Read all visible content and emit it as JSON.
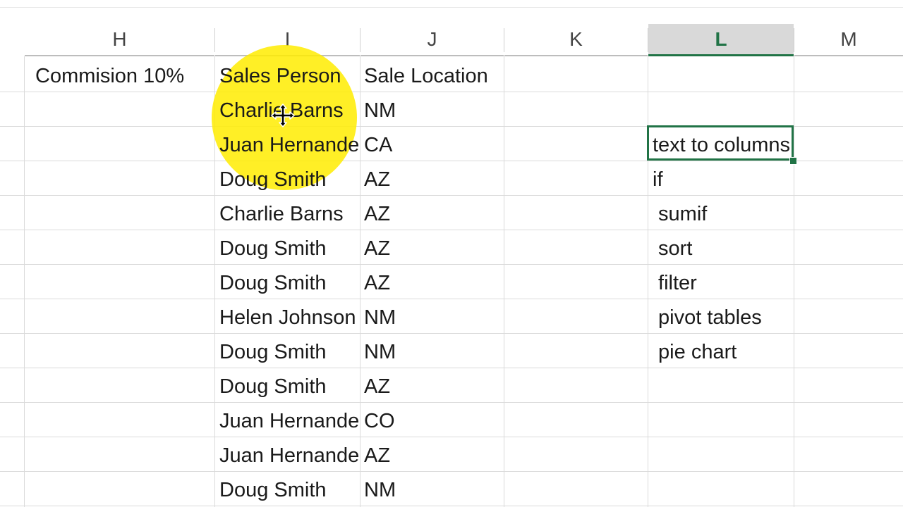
{
  "column_headers": [
    "H",
    "I",
    "J",
    "K",
    "L",
    "M"
  ],
  "selected_column": "L",
  "header_row": {
    "H": "Commision 10%",
    "I": "Sales Person",
    "J": "Sale Location"
  },
  "rows": [
    {
      "sales_person": "Charlie Barns",
      "location": "NM"
    },
    {
      "sales_person": "Juan Hernandez",
      "location": "CA"
    },
    {
      "sales_person": "Doug Smith",
      "location": "AZ"
    },
    {
      "sales_person": "Charlie Barns",
      "location": "AZ"
    },
    {
      "sales_person": "Doug Smith",
      "location": "AZ"
    },
    {
      "sales_person": "Doug Smith",
      "location": "AZ"
    },
    {
      "sales_person": "Helen Johnson",
      "location": "NM"
    },
    {
      "sales_person": "Doug Smith",
      "location": "NM"
    },
    {
      "sales_person": "Doug Smith",
      "location": "AZ"
    },
    {
      "sales_person": "Juan Hernandez",
      "location": "CO"
    },
    {
      "sales_person": "Juan Hernandez",
      "location": "AZ"
    },
    {
      "sales_person": "Doug Smith",
      "location": "NM"
    }
  ],
  "topics_column_L": [
    "text to columns",
    "if",
    " sumif",
    " sort",
    " filter",
    " pivot tables",
    " pie chart"
  ],
  "colors": {
    "accent": "#217346",
    "highlight": "#FFEC00",
    "gridline": "#DADADA"
  },
  "icons": {
    "cursor": "move-cross-arrow-icon"
  }
}
